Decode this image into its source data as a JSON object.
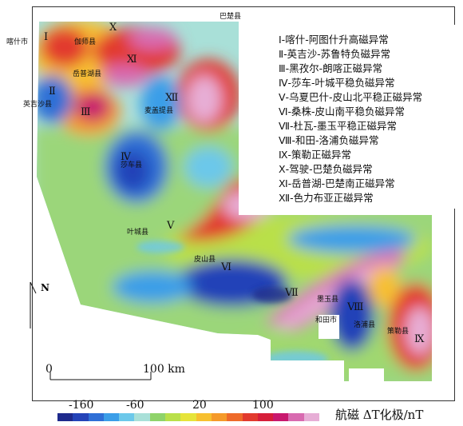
{
  "map": {
    "zones": [
      {
        "id": "I",
        "label": "Ⅰ"
      },
      {
        "id": "II",
        "label": "Ⅱ"
      },
      {
        "id": "III",
        "label": "Ⅲ"
      },
      {
        "id": "IV",
        "label": "Ⅳ"
      },
      {
        "id": "V",
        "label": "Ⅴ"
      },
      {
        "id": "VI",
        "label": "Ⅵ"
      },
      {
        "id": "VII",
        "label": "Ⅶ"
      },
      {
        "id": "VIII",
        "label": "Ⅷ"
      },
      {
        "id": "IX",
        "label": "Ⅸ"
      },
      {
        "id": "X",
        "label": "Ⅹ"
      },
      {
        "id": "XI",
        "label": "Ⅺ"
      },
      {
        "id": "XII",
        "label": "Ⅻ"
      }
    ],
    "places": [
      {
        "id": "kashi",
        "label": "喀什市"
      },
      {
        "id": "bachu",
        "label": "巴楚县"
      },
      {
        "id": "jiashi",
        "label": "伽师县"
      },
      {
        "id": "yuepuhu",
        "label": "岳普湖县"
      },
      {
        "id": "yingjisha",
        "label": "英吉沙县"
      },
      {
        "id": "maigaiti",
        "label": "麦盖提县"
      },
      {
        "id": "shache",
        "label": "莎车县"
      },
      {
        "id": "yecheng",
        "label": "叶城县"
      },
      {
        "id": "pishan",
        "label": "皮山县"
      },
      {
        "id": "moyu",
        "label": "墨玉县"
      },
      {
        "id": "hetian",
        "label": "和田市"
      },
      {
        "id": "luopu",
        "label": "洛浦县"
      },
      {
        "id": "cele",
        "label": "策勒县"
      }
    ],
    "north": "N",
    "scale": {
      "zero": "0",
      "end": "100 km"
    }
  },
  "legend": {
    "items": [
      "Ⅰ-喀什-阿图什升高磁异常",
      "Ⅱ-英吉沙-苏鲁特负磁异常",
      "Ⅲ-黑孜尔-朗喀正磁异常",
      "Ⅳ-莎车-叶城平稳负磁异常",
      "Ⅴ-乌夏巴什-皮山北平稳正磁异常",
      "Ⅵ-桑株-皮山南平稳负磁异常",
      "Ⅶ-杜瓦-墨玉平稳正磁异常",
      "Ⅷ-和田-洛浦负磁异常",
      "Ⅸ-策勒正磁异常",
      "Ⅹ-驾驶-巴楚负磁异常",
      "Ⅺ-岳普湖-巴楚南正磁异常",
      "Ⅻ-色力布亚正磁异常"
    ]
  },
  "colorbar": {
    "title": "航磁 ΔT化极/nT",
    "ticks": [
      "-160",
      "-60",
      "20",
      "100"
    ],
    "colors": [
      "#1e2a8c",
      "#2443b8",
      "#2f6fd6",
      "#3b9ee8",
      "#6cc8ea",
      "#a9e0d8",
      "#8fd36a",
      "#b9e04a",
      "#e6e43a",
      "#f7c030",
      "#f59a2a",
      "#ee6a2a",
      "#e23a2e",
      "#d61e3a",
      "#c8186e",
      "#d86ab0",
      "#e7aed6"
    ]
  }
}
